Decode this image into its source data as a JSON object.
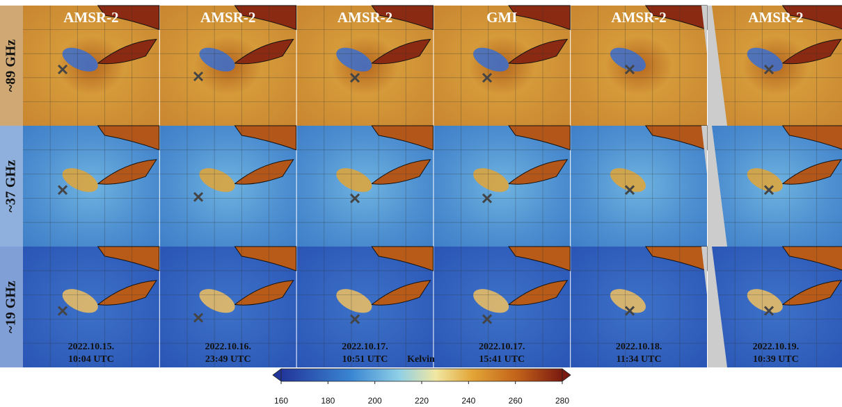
{
  "rows": [
    "~89 GHz",
    "~37 GHz",
    "~19 GHz"
  ],
  "columns": [
    {
      "sensor": "AMSR-2",
      "date": "2022.10.15.",
      "time": "10:04 UTC"
    },
    {
      "sensor": "AMSR-2",
      "date": "2022.10.16.",
      "time": "23:49 UTC"
    },
    {
      "sensor": "AMSR-2",
      "date": "2022.10.17.",
      "time": "10:51 UTC"
    },
    {
      "sensor": "GMI",
      "date": "2022.10.17.",
      "time": "15:41 UTC"
    },
    {
      "sensor": "AMSR-2",
      "date": "2022.10.18.",
      "time": "11:34 UTC"
    },
    {
      "sensor": "AMSR-2",
      "date": "2022.10.19.",
      "time": "10:39 UTC"
    }
  ],
  "colorbar": {
    "label": "Kelvin",
    "ticks": [
      160,
      180,
      200,
      220,
      240,
      260,
      280
    ]
  }
}
